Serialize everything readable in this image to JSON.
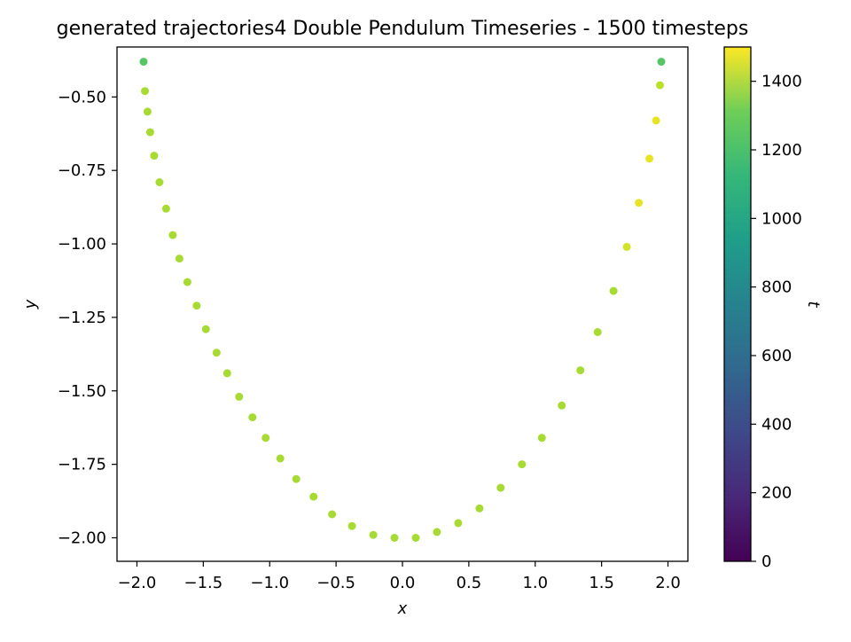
{
  "chart_data": {
    "type": "scatter",
    "title": "generated trajectories4 Double Pendulum Timeseries - 1500 timesteps",
    "xlabel": "x",
    "ylabel": "y",
    "xlim": [
      -2.15,
      2.15
    ],
    "ylim": [
      -2.08,
      -0.33
    ],
    "xticks": [
      {
        "value": -2.0,
        "label": "−2.0"
      },
      {
        "value": -1.5,
        "label": "−1.5"
      },
      {
        "value": -1.0,
        "label": "−1.0"
      },
      {
        "value": -0.5,
        "label": "−0.5"
      },
      {
        "value": 0.0,
        "label": "0.0"
      },
      {
        "value": 0.5,
        "label": "0.5"
      },
      {
        "value": 1.0,
        "label": "1.0"
      },
      {
        "value": 1.5,
        "label": "1.5"
      },
      {
        "value": 2.0,
        "label": "2.0"
      }
    ],
    "yticks": [
      {
        "value": -0.5,
        "label": "−0.50"
      },
      {
        "value": -0.75,
        "label": "−0.75"
      },
      {
        "value": -1.0,
        "label": "−1.00"
      },
      {
        "value": -1.25,
        "label": "−1.25"
      },
      {
        "value": -1.5,
        "label": "−1.50"
      },
      {
        "value": -1.75,
        "label": "−1.75"
      },
      {
        "value": -2.0,
        "label": "−2.00"
      }
    ],
    "colorbar": {
      "label": "t",
      "range": [
        0,
        1500
      ],
      "colormap": "viridis",
      "ticks": [
        {
          "value": 0,
          "label": "0"
        },
        {
          "value": 200,
          "label": "200"
        },
        {
          "value": 400,
          "label": "400"
        },
        {
          "value": 600,
          "label": "600"
        },
        {
          "value": 800,
          "label": "800"
        },
        {
          "value": 1000,
          "label": "1000"
        },
        {
          "value": 1200,
          "label": "1200"
        },
        {
          "value": 1400,
          "label": "1400"
        }
      ]
    },
    "series": [
      {
        "points": [
          {
            "x": -1.95,
            "y": -0.38,
            "t": 1100
          },
          {
            "x": -1.94,
            "y": -0.48,
            "t": 1300
          },
          {
            "x": -1.92,
            "y": -0.55,
            "t": 1300
          },
          {
            "x": -1.9,
            "y": -0.62,
            "t": 1300
          },
          {
            "x": -1.87,
            "y": -0.7,
            "t": 1300
          },
          {
            "x": -1.83,
            "y": -0.79,
            "t": 1300
          },
          {
            "x": -1.78,
            "y": -0.88,
            "t": 1300
          },
          {
            "x": -1.73,
            "y": -0.97,
            "t": 1300
          },
          {
            "x": -1.68,
            "y": -1.05,
            "t": 1300
          },
          {
            "x": -1.62,
            "y": -1.13,
            "t": 1300
          },
          {
            "x": -1.55,
            "y": -1.21,
            "t": 1300
          },
          {
            "x": -1.48,
            "y": -1.29,
            "t": 1300
          },
          {
            "x": -1.4,
            "y": -1.37,
            "t": 1300
          },
          {
            "x": -1.32,
            "y": -1.44,
            "t": 1300
          },
          {
            "x": -1.23,
            "y": -1.52,
            "t": 1300
          },
          {
            "x": -1.13,
            "y": -1.59,
            "t": 1300
          },
          {
            "x": -1.03,
            "y": -1.66,
            "t": 1300
          },
          {
            "x": -0.92,
            "y": -1.73,
            "t": 1300
          },
          {
            "x": -0.8,
            "y": -1.8,
            "t": 1300
          },
          {
            "x": -0.67,
            "y": -1.86,
            "t": 1300
          },
          {
            "x": -0.53,
            "y": -1.92,
            "t": 1300
          },
          {
            "x": -0.38,
            "y": -1.96,
            "t": 1300
          },
          {
            "x": -0.22,
            "y": -1.99,
            "t": 1300
          },
          {
            "x": -0.06,
            "y": -2.0,
            "t": 1300
          },
          {
            "x": 0.1,
            "y": -2.0,
            "t": 1300
          },
          {
            "x": 0.26,
            "y": -1.98,
            "t": 1300
          },
          {
            "x": 0.42,
            "y": -1.95,
            "t": 1300
          },
          {
            "x": 0.58,
            "y": -1.9,
            "t": 1300
          },
          {
            "x": 0.74,
            "y": -1.83,
            "t": 1300
          },
          {
            "x": 0.9,
            "y": -1.75,
            "t": 1300
          },
          {
            "x": 1.05,
            "y": -1.66,
            "t": 1300
          },
          {
            "x": 1.2,
            "y": -1.55,
            "t": 1300
          },
          {
            "x": 1.34,
            "y": -1.43,
            "t": 1300
          },
          {
            "x": 1.47,
            "y": -1.3,
            "t": 1300
          },
          {
            "x": 1.59,
            "y": -1.16,
            "t": 1300
          },
          {
            "x": 1.69,
            "y": -1.01,
            "t": 1400
          },
          {
            "x": 1.78,
            "y": -0.86,
            "t": 1450
          },
          {
            "x": 1.86,
            "y": -0.71,
            "t": 1450
          },
          {
            "x": 1.91,
            "y": -0.58,
            "t": 1450
          },
          {
            "x": 1.94,
            "y": -0.46,
            "t": 1350
          },
          {
            "x": 1.95,
            "y": -0.38,
            "t": 1100
          }
        ]
      }
    ]
  }
}
